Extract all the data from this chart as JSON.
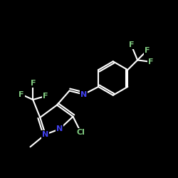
{
  "background_color": "#000000",
  "bond_color": "#ffffff",
  "atom_colors": {
    "F": "#7fc97f",
    "N": "#4040ee",
    "Cl": "#7fc97f",
    "C": "#ffffff"
  },
  "bond_width": 1.5,
  "font_size_atoms": 8
}
